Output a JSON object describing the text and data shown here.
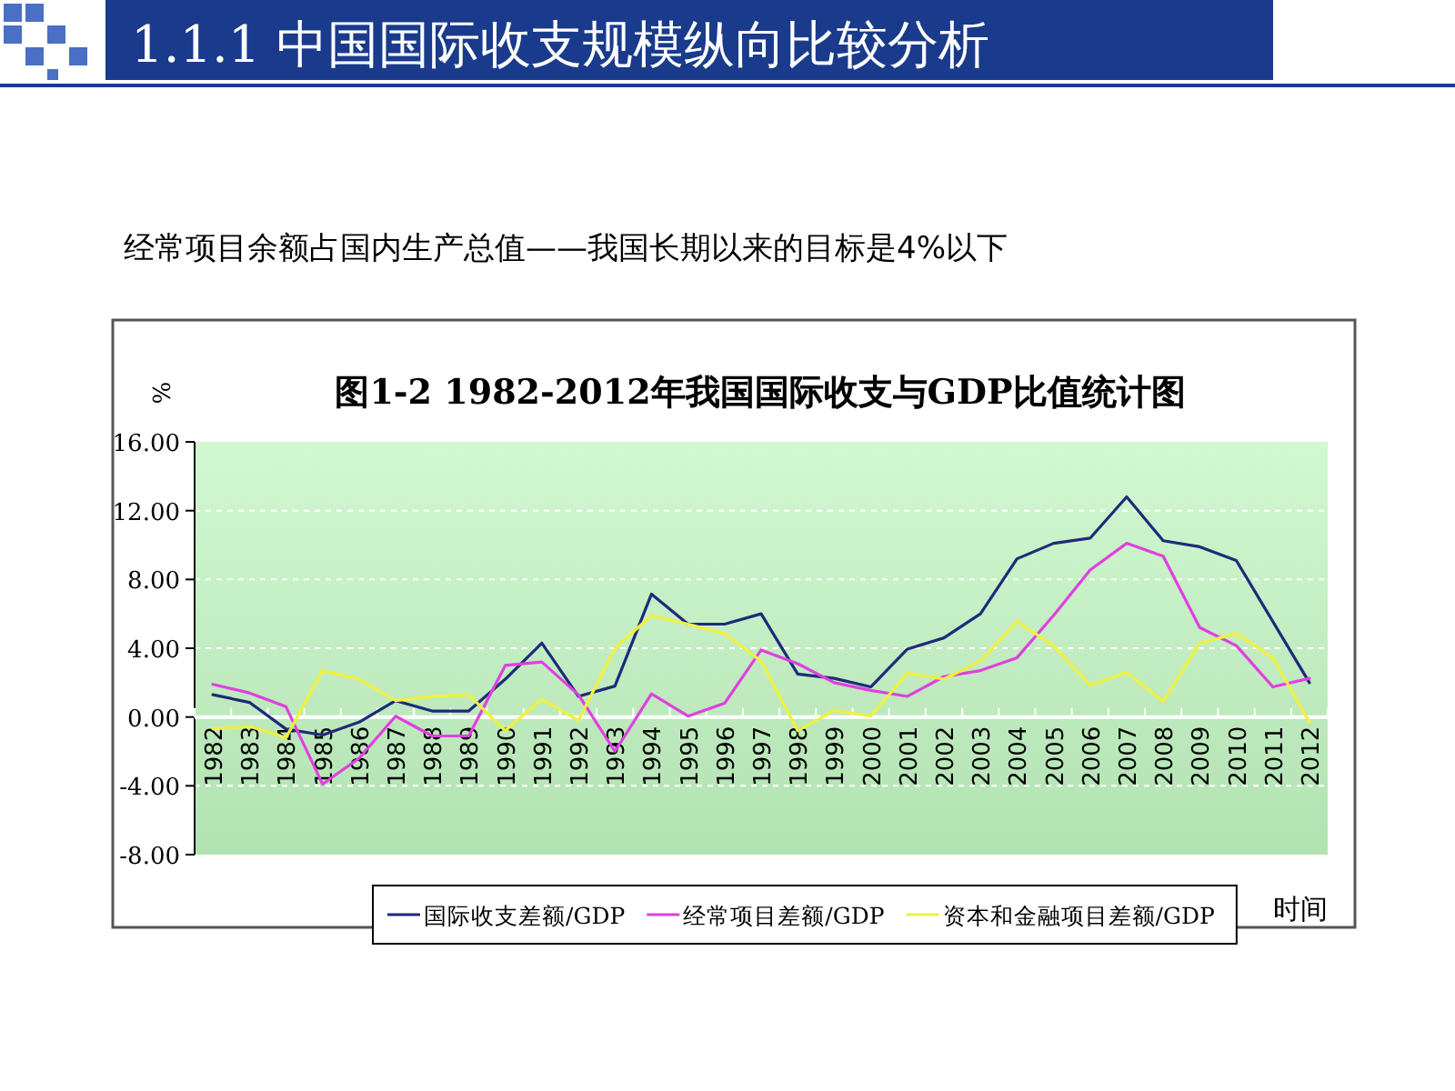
{
  "chart_data": {
    "type": "line",
    "title": "图1-2 1982-2012年我国国际收支与GDP比值统计图",
    "ylabel": "%",
    "xlabel": "时间",
    "annotations": [
      "1.1.1 中国国际收支规模纵向比较分析",
      "经常项目余额占国内生产总值——我国长期以来的目标是4%以下"
    ],
    "categories": [
      "1982",
      "1983",
      "1984",
      "1985",
      "1986",
      "1987",
      "1988",
      "1989",
      "1990",
      "1991",
      "1992",
      "1993",
      "1994",
      "1995",
      "1996",
      "1997",
      "1998",
      "1999",
      "2000",
      "2001",
      "2002",
      "2003",
      "2004",
      "2005",
      "2006",
      "2007",
      "2008",
      "2009",
      "2010",
      "2011",
      "2012"
    ],
    "series": [
      {
        "name": "国际收支差额/GDP",
        "color": "#1f2a7a",
        "values": [
          1.3,
          0.85,
          -0.7,
          -1.05,
          -0.3,
          0.95,
          0.35,
          0.35,
          2.2,
          4.3,
          1.2,
          1.8,
          7.15,
          5.4,
          5.4,
          6.0,
          2.5,
          2.25,
          1.75,
          3.95,
          4.6,
          6.0,
          9.2,
          10.1,
          10.4,
          12.8,
          10.25,
          9.9,
          9.1,
          5.55,
          2.0
        ]
      },
      {
        "name": "经常项目差额/GDP",
        "color": "#e040e0",
        "values": [
          1.9,
          1.4,
          0.6,
          -3.9,
          -2.4,
          0.05,
          -1.1,
          -1.1,
          3.0,
          3.2,
          1.3,
          -2.0,
          1.35,
          0.05,
          0.8,
          3.9,
          3.1,
          2.0,
          1.55,
          1.2,
          2.35,
          2.7,
          3.45,
          5.9,
          8.55,
          10.1,
          9.35,
          5.2,
          4.15,
          1.75,
          2.25
        ]
      },
      {
        "name": "资本和金融项目差额/GDP",
        "color": "#f0f040",
        "values": [
          -0.7,
          -0.55,
          -1.2,
          2.7,
          2.2,
          0.95,
          1.2,
          1.3,
          -0.8,
          1.05,
          -0.2,
          4.0,
          5.9,
          5.4,
          4.85,
          3.25,
          -0.8,
          0.4,
          0.05,
          2.55,
          2.2,
          3.25,
          5.55,
          4.15,
          1.85,
          2.6,
          0.9,
          4.3,
          4.85,
          3.45,
          -0.3
        ]
      }
    ],
    "ylim": [
      -8,
      16
    ],
    "yticks": [
      {
        "value": -8,
        "label": "-8.00"
      },
      {
        "value": -4,
        "label": "-4.00"
      },
      {
        "value": 0,
        "label": "0.00"
      },
      {
        "value": 4,
        "label": "4.00"
      },
      {
        "value": 8,
        "label": "8.00"
      },
      {
        "value": 12,
        "label": "12.00"
      },
      {
        "value": 16,
        "label": "16.00"
      }
    ],
    "grid": "y",
    "legend": "bottom"
  }
}
